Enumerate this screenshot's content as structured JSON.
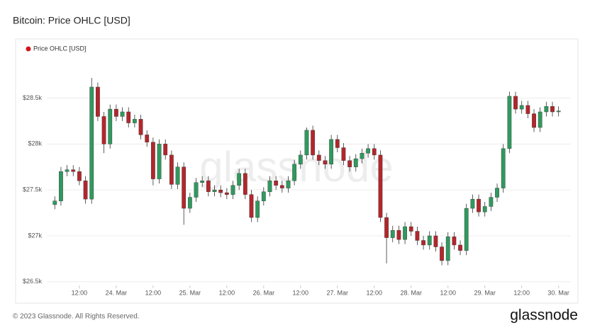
{
  "chart_data": {
    "type": "candlestick",
    "title": "Bitcoin: Price OHLC [USD]",
    "watermark": "glassnode",
    "x": [
      -20,
      -18,
      -16,
      -14,
      -12,
      -10,
      -8,
      -6,
      -4,
      -2,
      0,
      2,
      4,
      6,
      8,
      10,
      12,
      14,
      16,
      18,
      20,
      22,
      24,
      26,
      28,
      30,
      32,
      34,
      36,
      38,
      40,
      42,
      44,
      46,
      48,
      50,
      52,
      54,
      56,
      58,
      60,
      62,
      64,
      66,
      68,
      70,
      72,
      74,
      76,
      78,
      80,
      82,
      84,
      86,
      88,
      90,
      92,
      94,
      96,
      98,
      100,
      102,
      104,
      106,
      108,
      110,
      112,
      114,
      116,
      118,
      120,
      122,
      124,
      126,
      128,
      130,
      132,
      134,
      136,
      138,
      140,
      142,
      144
    ],
    "series": [
      {
        "name": "Price OHLC [USD]",
        "color": "#d0161d",
        "up_color": "#2f9a5e",
        "down_color": "#b3262b",
        "open": [
          27340,
          27380,
          27700,
          27720,
          27700,
          27600,
          27400,
          28620,
          28300,
          28000,
          28380,
          28300,
          28350,
          28230,
          28270,
          28100,
          28020,
          27620,
          28000,
          27880,
          27560,
          27750,
          27300,
          27420,
          27580,
          27600,
          27480,
          27500,
          27470,
          27450,
          27550,
          27680,
          27450,
          27200,
          27380,
          27480,
          27600,
          27550,
          27520,
          27600,
          27780,
          27880,
          28150,
          27880,
          27820,
          27780,
          28050,
          27960,
          27820,
          27750,
          27840,
          27900,
          27950,
          27880,
          27200,
          26980,
          27060,
          26960,
          27100,
          27050,
          26950,
          26900,
          27000,
          26880,
          26730,
          26990,
          26900,
          26840,
          27300,
          27400,
          27260,
          27320,
          27420,
          27520,
          27950,
          28520,
          28380,
          28420,
          28330,
          28180,
          28350,
          28410,
          28350
        ],
        "high": [
          27430,
          27750,
          27770,
          27770,
          27750,
          27650,
          28720,
          28670,
          28350,
          28430,
          28430,
          28400,
          28400,
          28320,
          28320,
          28150,
          28070,
          28050,
          28050,
          27930,
          27800,
          27800,
          27470,
          27630,
          27650,
          27650,
          27550,
          27550,
          27520,
          27600,
          27730,
          27730,
          27500,
          27430,
          27530,
          27650,
          27650,
          27600,
          27650,
          27830,
          27930,
          28180,
          28200,
          27930,
          27870,
          28100,
          28100,
          28010,
          27870,
          27890,
          27950,
          28000,
          28000,
          27930,
          27250,
          27110,
          27110,
          27150,
          27150,
          27100,
          27000,
          27050,
          27050,
          26930,
          27040,
          27040,
          26950,
          27350,
          27450,
          27450,
          27370,
          27470,
          27570,
          28000,
          28570,
          28570,
          28470,
          28470,
          28380,
          28400,
          28460,
          28460,
          28410
        ],
        "low": [
          27290,
          27330,
          27650,
          27650,
          27550,
          27350,
          27350,
          28250,
          27900,
          27950,
          28250,
          28250,
          28180,
          28180,
          28050,
          27970,
          27550,
          27570,
          27830,
          27510,
          27510,
          27120,
          27250,
          27370,
          27530,
          27430,
          27430,
          27420,
          27400,
          27400,
          27500,
          27400,
          27150,
          27150,
          27330,
          27430,
          27500,
          27470,
          27470,
          27550,
          27730,
          27830,
          27830,
          27770,
          27730,
          27730,
          27910,
          27770,
          27700,
          27700,
          27790,
          27850,
          27830,
          27150,
          26700,
          26930,
          26910,
          26910,
          27000,
          26900,
          26850,
          26850,
          26830,
          26680,
          26680,
          26850,
          26790,
          26790,
          27250,
          27210,
          27210,
          27270,
          27370,
          27470,
          27900,
          28330,
          28330,
          28280,
          28130,
          28130,
          28300,
          28300,
          28300
        ],
        "close": [
          27380,
          27700,
          27720,
          27700,
          27600,
          27400,
          28620,
          28300,
          28000,
          28380,
          28300,
          28350,
          28230,
          28270,
          28100,
          28020,
          27620,
          28000,
          27880,
          27560,
          27750,
          27300,
          27420,
          27580,
          27600,
          27480,
          27500,
          27470,
          27450,
          27550,
          27680,
          27450,
          27200,
          27380,
          27480,
          27600,
          27550,
          27520,
          27600,
          27780,
          27880,
          28150,
          27880,
          27820,
          27780,
          28050,
          27960,
          27820,
          27750,
          27840,
          27900,
          27950,
          27880,
          27200,
          26980,
          27060,
          26960,
          27100,
          27050,
          26950,
          26900,
          27000,
          26880,
          26730,
          26990,
          26900,
          26840,
          27300,
          27400,
          27260,
          27320,
          27420,
          27520,
          27950,
          28520,
          28380,
          28420,
          28330,
          28180,
          28350,
          28410,
          28350,
          28360
        ]
      }
    ],
    "xlim": [
      -22.6,
      148
    ],
    "xticks": [
      {
        "value": -12,
        "label": "12:00"
      },
      {
        "value": 0,
        "label": "24. Mar"
      },
      {
        "value": 12,
        "label": "12:00"
      },
      {
        "value": 24,
        "label": "25. Mar"
      },
      {
        "value": 36,
        "label": "12:00"
      },
      {
        "value": 48,
        "label": "26. Mar"
      },
      {
        "value": 60,
        "label": "12:00"
      },
      {
        "value": 72,
        "label": "27. Mar"
      },
      {
        "value": 84,
        "label": "12:00"
      },
      {
        "value": 96,
        "label": "28. Mar"
      },
      {
        "value": 108,
        "label": "12:00"
      },
      {
        "value": 120,
        "label": "29. Mar"
      },
      {
        "value": 132,
        "label": "12:00"
      },
      {
        "value": 144,
        "label": "30. Mar"
      }
    ],
    "ylim": [
      26460,
      28720
    ],
    "yticks": [
      {
        "value": 26500,
        "label": "$26.5k"
      },
      {
        "value": 27000,
        "label": "$27k"
      },
      {
        "value": 27500,
        "label": "$27.5k"
      },
      {
        "value": 28000,
        "label": "$28k"
      },
      {
        "value": 28500,
        "label": "$28.5k"
      }
    ],
    "grid": true,
    "legend": "top-left"
  },
  "footer": {
    "copyright": "© 2023 Glassnode. All Rights Reserved.",
    "logo": "glassnode"
  }
}
